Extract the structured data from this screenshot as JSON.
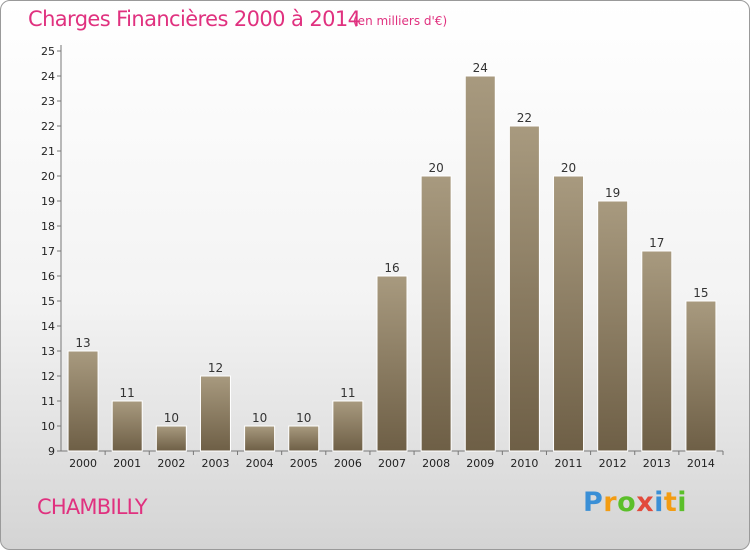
{
  "header": {
    "title": "Charges Financières 2000 à 2014",
    "subtitle": "(en milliers d'€)"
  },
  "footer": {
    "town": "CHAMBILLY",
    "logo": [
      "P",
      "r",
      "o",
      "x",
      "i",
      "t",
      "i"
    ],
    "logo_colors": [
      "#3a8fd6",
      "#f39c12",
      "#5bbf2a",
      "#e24a3b",
      "#3a8fd6",
      "#f39c12",
      "#5bbf2a"
    ]
  },
  "chart_data": {
    "type": "bar",
    "categories": [
      "2000",
      "2001",
      "2002",
      "2003",
      "2004",
      "2005",
      "2006",
      "2007",
      "2008",
      "2009",
      "2010",
      "2011",
      "2012",
      "2013",
      "2014"
    ],
    "values": [
      13,
      11,
      10,
      12,
      10,
      10,
      11,
      16,
      20,
      24,
      22,
      20,
      19,
      17,
      15
    ],
    "title": "Charges Financières 2000 à 2014",
    "xlabel": "",
    "ylabel": "",
    "ylim": [
      9,
      25
    ],
    "yticks": [
      9,
      10,
      11,
      12,
      13,
      14,
      15,
      16,
      17,
      18,
      19,
      20,
      21,
      22,
      23,
      24,
      25
    ],
    "grid": false,
    "bar_color_top": "#a89a7f",
    "bar_color_bottom": "#6e5f46"
  }
}
